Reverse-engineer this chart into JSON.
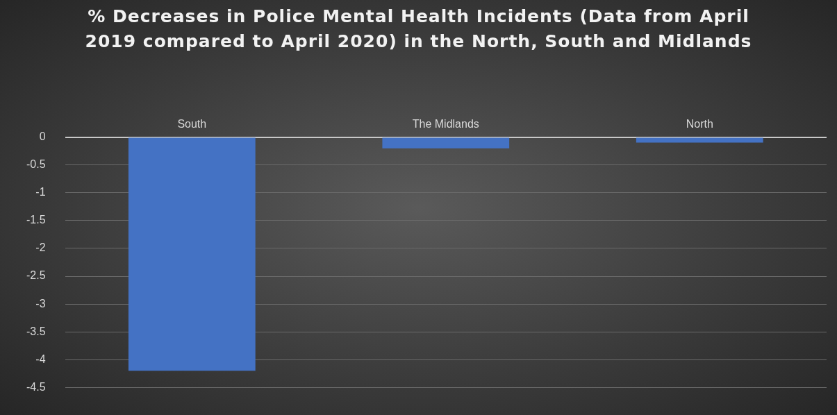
{
  "chart_data": {
    "type": "bar",
    "title": "% Decreases in Police Mental Health Incidents (Data from April 2019 compared to April 2020) in the North, South and Midlands",
    "categories": [
      "South",
      "The Midlands",
      "North"
    ],
    "values": [
      -4.2,
      -0.2,
      -0.1
    ],
    "color": "#4472c4",
    "ylim": [
      -4.5,
      0
    ],
    "yticks": [
      0,
      -0.5,
      -1,
      -1.5,
      -2,
      -2.5,
      -3,
      -3.5,
      -4,
      -4.5
    ],
    "grid": "y",
    "legend": false
  }
}
